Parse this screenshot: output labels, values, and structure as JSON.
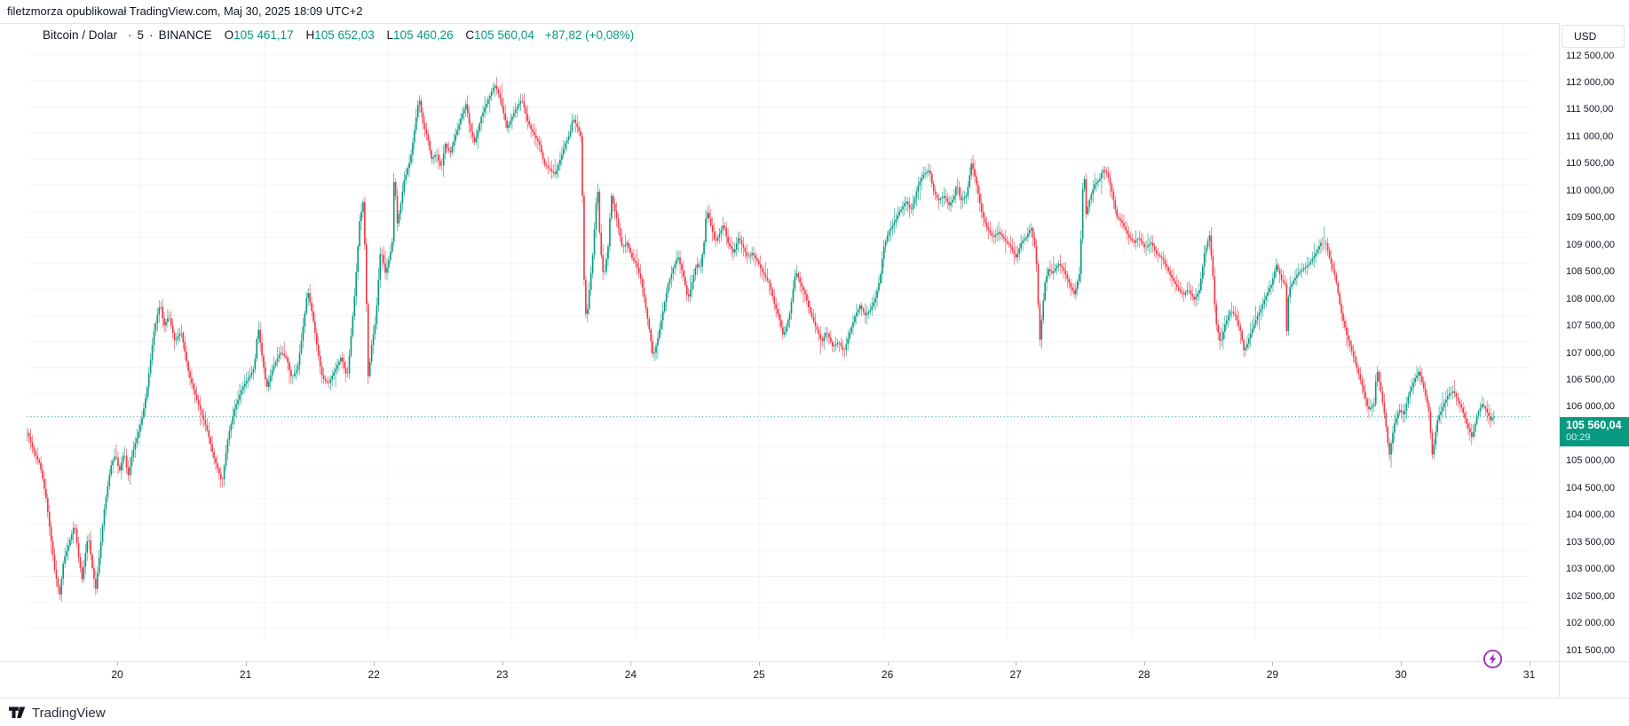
{
  "attribution": "filetzmorza opublikował TradingView.com, Maj 30, 2025 18:09 UTC+2",
  "legend": {
    "symbol": "Bitcoin / Dolar",
    "separator": "·",
    "interval": "5",
    "exchange": "BINANCE",
    "ohlc": [
      {
        "k": "O",
        "v": "105 461,17"
      },
      {
        "k": "H",
        "v": "105 652,03"
      },
      {
        "k": "L",
        "v": "105 460,26"
      },
      {
        "k": "C",
        "v": "105 560,04"
      }
    ],
    "change": "+87,82 (+0,08%)"
  },
  "price_axis": {
    "currency": "USD",
    "price_label": {
      "price": "105 560,04",
      "countdown": "00:29"
    }
  },
  "time_axis": {
    "labels": [
      "20",
      "21",
      "22",
      "23",
      "24",
      "25",
      "26",
      "27",
      "28",
      "29",
      "30",
      "31"
    ]
  },
  "branding": {
    "logo_text": "TradingView"
  },
  "colors": {
    "up": "#089981",
    "down": "#F23645",
    "grid": "#f0f3fa",
    "axis_text": "#131722",
    "border": "#e0e3eb",
    "price_line": "#089981",
    "lightning": "#9c27b0"
  },
  "chart_data": {
    "type": "candlestick",
    "title": "Bitcoin / Dolar",
    "exchange": "BINANCE",
    "interval_minutes": 5,
    "currency": "USD",
    "x_unit": "day of May 2025 (decimal)",
    "x_range": [
      19.087,
      30.93
    ],
    "y_range": [
      101500,
      112500
    ],
    "grid_step_usd": 500,
    "legend_position": "top-left",
    "grid": true,
    "ohlc_current": {
      "open": 105461.17,
      "high": 105652.03,
      "low": 105460.26,
      "close": 105560.04,
      "change": 87.82,
      "change_pct": 0.08
    },
    "path": [
      [
        19.09,
        105250
      ],
      [
        19.14,
        104900
      ],
      [
        19.19,
        104650
      ],
      [
        19.24,
        104000
      ],
      [
        19.28,
        103200
      ],
      [
        19.31,
        102600
      ],
      [
        19.35,
        102150
      ],
      [
        19.38,
        102800
      ],
      [
        19.42,
        103100
      ],
      [
        19.47,
        103500
      ],
      [
        19.5,
        102900
      ],
      [
        19.53,
        102450
      ],
      [
        19.56,
        103000
      ],
      [
        19.58,
        103300
      ],
      [
        19.61,
        102700
      ],
      [
        19.64,
        102250
      ],
      [
        19.67,
        102900
      ],
      [
        19.71,
        103800
      ],
      [
        19.76,
        104600
      ],
      [
        19.8,
        104850
      ],
      [
        19.83,
        104500
      ],
      [
        19.87,
        104900
      ],
      [
        19.9,
        104400
      ],
      [
        19.94,
        104900
      ],
      [
        19.99,
        105300
      ],
      [
        20.02,
        105600
      ],
      [
        20.06,
        106200
      ],
      [
        20.11,
        107200
      ],
      [
        20.16,
        107750
      ],
      [
        20.19,
        107300
      ],
      [
        20.23,
        107500
      ],
      [
        20.28,
        107000
      ],
      [
        20.33,
        107200
      ],
      [
        20.39,
        106400
      ],
      [
        20.44,
        106000
      ],
      [
        20.49,
        105650
      ],
      [
        20.54,
        105300
      ],
      [
        20.59,
        104800
      ],
      [
        20.66,
        104300
      ],
      [
        20.71,
        105200
      ],
      [
        20.76,
        105700
      ],
      [
        20.82,
        106100
      ],
      [
        20.87,
        106300
      ],
      [
        20.92,
        106500
      ],
      [
        20.95,
        107300
      ],
      [
        20.99,
        106600
      ],
      [
        21.02,
        106100
      ],
      [
        21.07,
        106500
      ],
      [
        21.13,
        106800
      ],
      [
        21.18,
        106700
      ],
      [
        21.22,
        106300
      ],
      [
        21.27,
        106500
      ],
      [
        21.31,
        107200
      ],
      [
        21.35,
        108000
      ],
      [
        21.39,
        107500
      ],
      [
        21.44,
        106700
      ],
      [
        21.47,
        106300
      ],
      [
        21.52,
        106200
      ],
      [
        21.58,
        106500
      ],
      [
        21.62,
        106700
      ],
      [
        21.67,
        106300
      ],
      [
        21.69,
        106800
      ],
      [
        21.73,
        107900
      ],
      [
        21.77,
        109300
      ],
      [
        21.8,
        109700
      ],
      [
        21.82,
        108300
      ],
      [
        21.84,
        106300
      ],
      [
        21.87,
        107000
      ],
      [
        21.9,
        107400
      ],
      [
        21.94,
        108800
      ],
      [
        21.98,
        108300
      ],
      [
        22.01,
        108600
      ],
      [
        22.04,
        109000
      ],
      [
        22.05,
        110500
      ],
      [
        22.07,
        109200
      ],
      [
        22.1,
        109600
      ],
      [
        22.13,
        110100
      ],
      [
        22.18,
        110500
      ],
      [
        22.21,
        111000
      ],
      [
        22.25,
        111700
      ],
      [
        22.28,
        111200
      ],
      [
        22.32,
        110900
      ],
      [
        22.35,
        110500
      ],
      [
        22.39,
        110600
      ],
      [
        22.43,
        110300
      ],
      [
        22.46,
        110800
      ],
      [
        22.5,
        110600
      ],
      [
        22.55,
        111000
      ],
      [
        22.59,
        111300
      ],
      [
        22.63,
        111570
      ],
      [
        22.66,
        111100
      ],
      [
        22.7,
        110800
      ],
      [
        22.75,
        111300
      ],
      [
        22.8,
        111600
      ],
      [
        22.86,
        111930
      ],
      [
        22.9,
        111700
      ],
      [
        22.93,
        111400
      ],
      [
        22.96,
        111100
      ],
      [
        23.0,
        111300
      ],
      [
        23.04,
        111500
      ],
      [
        23.08,
        111650
      ],
      [
        23.13,
        111200
      ],
      [
        23.17,
        111000
      ],
      [
        23.22,
        110800
      ],
      [
        23.26,
        110400
      ],
      [
        23.31,
        110300
      ],
      [
        23.35,
        110200
      ],
      [
        23.39,
        110500
      ],
      [
        23.43,
        110800
      ],
      [
        23.47,
        111000
      ],
      [
        23.49,
        111300
      ],
      [
        23.53,
        111100
      ],
      [
        23.56,
        110900
      ],
      [
        23.58,
        108300
      ],
      [
        23.6,
        107350
      ],
      [
        23.62,
        107900
      ],
      [
        23.65,
        108600
      ],
      [
        23.69,
        110050
      ],
      [
        23.71,
        108900
      ],
      [
        23.74,
        108200
      ],
      [
        23.78,
        108900
      ],
      [
        23.8,
        109840
      ],
      [
        23.85,
        109300
      ],
      [
        23.89,
        108800
      ],
      [
        23.93,
        108900
      ],
      [
        23.97,
        108600
      ],
      [
        24.0,
        108500
      ],
      [
        24.04,
        108200
      ],
      [
        24.07,
        107800
      ],
      [
        24.11,
        107200
      ],
      [
        24.14,
        106700
      ],
      [
        24.18,
        107100
      ],
      [
        24.22,
        107600
      ],
      [
        24.26,
        108100
      ],
      [
        24.3,
        108400
      ],
      [
        24.34,
        108640
      ],
      [
        24.39,
        108200
      ],
      [
        24.42,
        107800
      ],
      [
        24.45,
        108100
      ],
      [
        24.49,
        108500
      ],
      [
        24.52,
        108400
      ],
      [
        24.55,
        108900
      ],
      [
        24.57,
        109550
      ],
      [
        24.61,
        109200
      ],
      [
        24.64,
        108900
      ],
      [
        24.68,
        109100
      ],
      [
        24.71,
        109260
      ],
      [
        24.74,
        108900
      ],
      [
        24.79,
        108700
      ],
      [
        24.83,
        109000
      ],
      [
        24.87,
        108800
      ],
      [
        24.9,
        108600
      ],
      [
        24.94,
        108700
      ],
      [
        24.99,
        108500
      ],
      [
        25.03,
        108300
      ],
      [
        25.08,
        108100
      ],
      [
        25.12,
        107700
      ],
      [
        25.15,
        107500
      ],
      [
        25.19,
        107100
      ],
      [
        25.24,
        107500
      ],
      [
        25.29,
        108360
      ],
      [
        25.33,
        108100
      ],
      [
        25.37,
        107900
      ],
      [
        25.4,
        107600
      ],
      [
        25.45,
        107300
      ],
      [
        25.5,
        107000
      ],
      [
        25.54,
        107200
      ],
      [
        25.59,
        106900
      ],
      [
        25.64,
        107000
      ],
      [
        25.68,
        106800
      ],
      [
        25.73,
        107200
      ],
      [
        25.77,
        107500
      ],
      [
        25.81,
        107700
      ],
      [
        25.85,
        107500
      ],
      [
        25.89,
        107600
      ],
      [
        25.93,
        107800
      ],
      [
        25.97,
        108200
      ],
      [
        26.0,
        108800
      ],
      [
        26.04,
        109100
      ],
      [
        26.09,
        109300
      ],
      [
        26.13,
        109500
      ],
      [
        26.18,
        109700
      ],
      [
        26.22,
        109500
      ],
      [
        26.28,
        110000
      ],
      [
        26.32,
        110200
      ],
      [
        26.37,
        110300
      ],
      [
        26.4,
        109900
      ],
      [
        26.44,
        109700
      ],
      [
        26.49,
        109800
      ],
      [
        26.53,
        109600
      ],
      [
        26.57,
        109800
      ],
      [
        26.59,
        110040
      ],
      [
        26.62,
        109700
      ],
      [
        26.67,
        109800
      ],
      [
        26.71,
        110450
      ],
      [
        26.75,
        110000
      ],
      [
        26.79,
        109500
      ],
      [
        26.83,
        109200
      ],
      [
        26.88,
        109000
      ],
      [
        26.93,
        109100
      ],
      [
        26.98,
        108950
      ],
      [
        27.03,
        108800
      ],
      [
        27.07,
        108600
      ],
      [
        27.11,
        108900
      ],
      [
        27.15,
        109000
      ],
      [
        27.19,
        109200
      ],
      [
        27.23,
        108700
      ],
      [
        27.26,
        107000
      ],
      [
        27.3,
        108100
      ],
      [
        27.33,
        108400
      ],
      [
        27.36,
        108300
      ],
      [
        27.41,
        108500
      ],
      [
        27.45,
        108400
      ],
      [
        27.5,
        108100
      ],
      [
        27.54,
        107900
      ],
      [
        27.58,
        108300
      ],
      [
        27.6,
        109300
      ],
      [
        27.615,
        110600
      ],
      [
        27.63,
        109400
      ],
      [
        27.66,
        109700
      ],
      [
        27.7,
        110000
      ],
      [
        27.74,
        110100
      ],
      [
        27.77,
        110300
      ],
      [
        27.81,
        110200
      ],
      [
        27.85,
        109800
      ],
      [
        27.88,
        109400
      ],
      [
        27.92,
        109300
      ],
      [
        27.96,
        109100
      ],
      [
        27.98,
        109000
      ],
      [
        28.02,
        108900
      ],
      [
        28.06,
        109000
      ],
      [
        28.11,
        108800
      ],
      [
        28.16,
        108900
      ],
      [
        28.2,
        108700
      ],
      [
        28.25,
        108600
      ],
      [
        28.29,
        108400
      ],
      [
        28.33,
        108200
      ],
      [
        28.38,
        108000
      ],
      [
        28.42,
        107900
      ],
      [
        28.46,
        108000
      ],
      [
        28.51,
        107800
      ],
      [
        28.55,
        108000
      ],
      [
        28.59,
        108700
      ],
      [
        28.63,
        109050
      ],
      [
        28.66,
        108200
      ],
      [
        28.68,
        107400
      ],
      [
        28.72,
        106950
      ],
      [
        28.75,
        107300
      ],
      [
        28.8,
        107600
      ],
      [
        28.84,
        107500
      ],
      [
        28.88,
        107200
      ],
      [
        28.91,
        106800
      ],
      [
        28.94,
        107000
      ],
      [
        28.97,
        107200
      ],
      [
        29.0,
        107400
      ],
      [
        29.04,
        107600
      ],
      [
        29.09,
        107900
      ],
      [
        29.13,
        108100
      ],
      [
        29.17,
        108480
      ],
      [
        29.21,
        108200
      ],
      [
        29.24,
        108100
      ],
      [
        29.25,
        107050
      ],
      [
        29.27,
        108000
      ],
      [
        29.34,
        108300
      ],
      [
        29.39,
        108400
      ],
      [
        29.44,
        108500
      ],
      [
        29.49,
        108700
      ],
      [
        29.53,
        108900
      ],
      [
        29.57,
        108900
      ],
      [
        29.6,
        108600
      ],
      [
        29.65,
        108200
      ],
      [
        29.69,
        107600
      ],
      [
        29.74,
        107100
      ],
      [
        29.78,
        106800
      ],
      [
        29.82,
        106500
      ],
      [
        29.87,
        106100
      ],
      [
        29.91,
        105700
      ],
      [
        29.96,
        105800
      ],
      [
        29.98,
        106500
      ],
      [
        30.01,
        106100
      ],
      [
        30.05,
        105500
      ],
      [
        30.08,
        104800
      ],
      [
        30.12,
        105400
      ],
      [
        30.16,
        105700
      ],
      [
        30.2,
        105600
      ],
      [
        30.24,
        106000
      ],
      [
        30.29,
        106300
      ],
      [
        30.32,
        106430
      ],
      [
        30.36,
        106100
      ],
      [
        30.4,
        105700
      ],
      [
        30.43,
        104800
      ],
      [
        30.47,
        105500
      ],
      [
        30.52,
        105800
      ],
      [
        30.56,
        106000
      ],
      [
        30.6,
        106050
      ],
      [
        30.63,
        105900
      ],
      [
        30.67,
        105700
      ],
      [
        30.71,
        105400
      ],
      [
        30.75,
        105150
      ],
      [
        30.79,
        105600
      ],
      [
        30.83,
        105800
      ],
      [
        30.86,
        105700
      ],
      [
        30.9,
        105500
      ],
      [
        30.92,
        105560
      ]
    ]
  }
}
